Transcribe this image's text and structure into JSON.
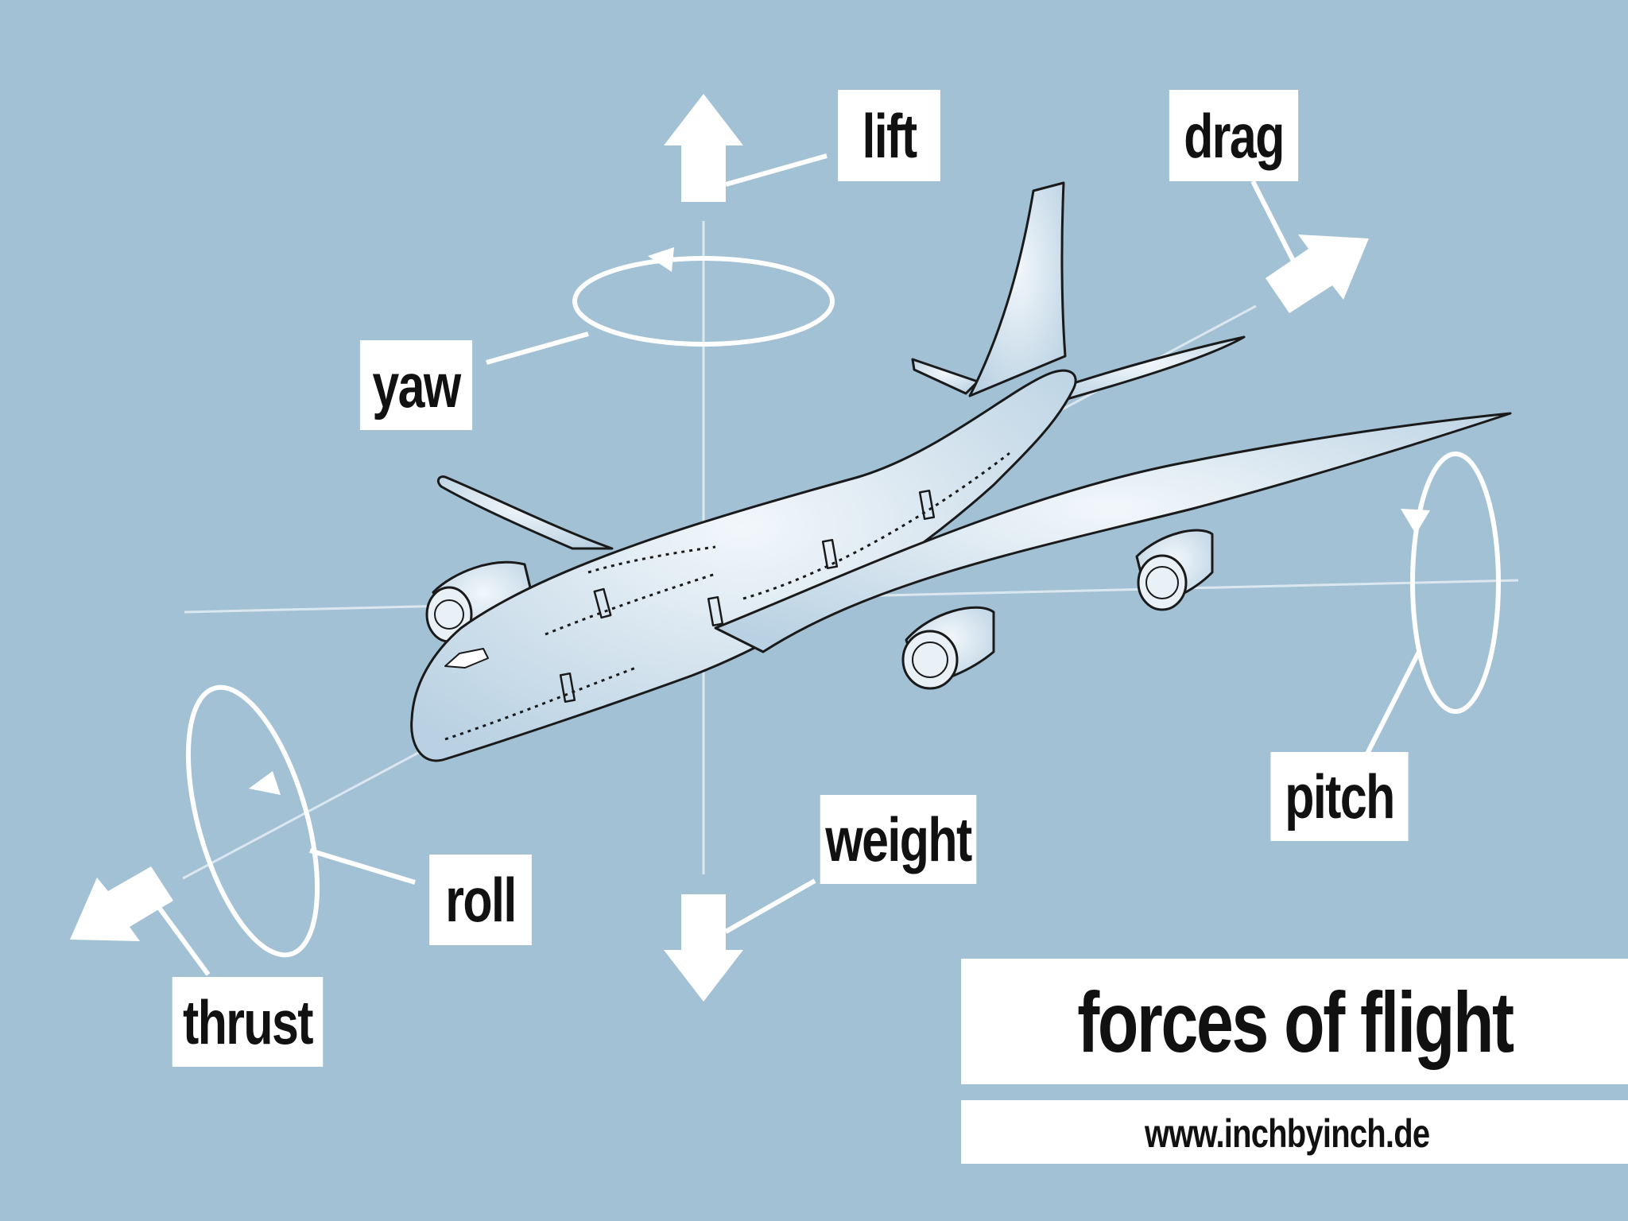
{
  "labels": {
    "lift": "lift",
    "drag": "drag",
    "yaw": "yaw",
    "pitch": "pitch",
    "weight": "weight",
    "roll": "roll",
    "thrust": "thrust"
  },
  "title": "forces of flight",
  "footer": {
    "url": "www.inchbyinch.de",
    "license_icons": [
      "cc-icon",
      "attribution-icon",
      "noncommercial-icon"
    ]
  },
  "colors": {
    "background": "#a2c1d5",
    "label_bg": "#ffffff",
    "text": "#111111",
    "plane_fill": "#dbe9f2",
    "plane_outline": "#1a1a1a"
  }
}
